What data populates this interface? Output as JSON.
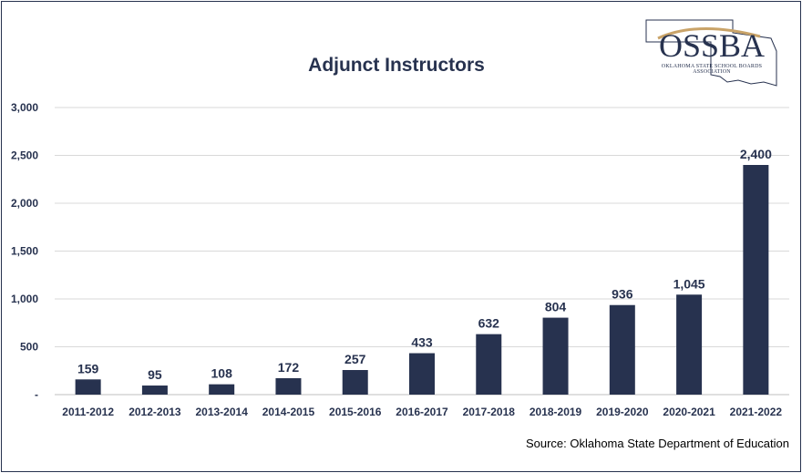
{
  "chart_data": {
    "type": "bar",
    "title": "Adjunct Instructors",
    "categories": [
      "2011-2012",
      "2012-2013",
      "2013-2014",
      "2014-2015",
      "2015-2016",
      "2016-2017",
      "2017-2018",
      "2018-2019",
      "2019-2020",
      "2020-2021",
      "2021-2022"
    ],
    "values": [
      159,
      95,
      108,
      172,
      257,
      433,
      632,
      804,
      936,
      1045,
      2400
    ],
    "value_labels": [
      "159",
      "95",
      "108",
      "172",
      "257",
      "433",
      "632",
      "804",
      "936",
      "1,045",
      "2,400"
    ],
    "ylim": [
      0,
      3000
    ],
    "yticks": [
      0,
      500,
      1000,
      1500,
      2000,
      2500,
      3000
    ],
    "ytick_labels": [
      "-",
      "500",
      "1,000",
      "1,500",
      "2,000",
      "2,500",
      "3,000"
    ],
    "grid": true,
    "bar_color": "#27324f",
    "xlabel": "",
    "ylabel": ""
  },
  "source_text": "Source: Oklahoma State Department of Education",
  "logo": {
    "text": "OSSBA",
    "subtitle": "OKLAHOMA STATE SCHOOL BOARDS ASSOCIATION",
    "accent_color": "#c9a368"
  },
  "colors": {
    "navy": "#27324f",
    "gridline": "#d9d9d9"
  }
}
